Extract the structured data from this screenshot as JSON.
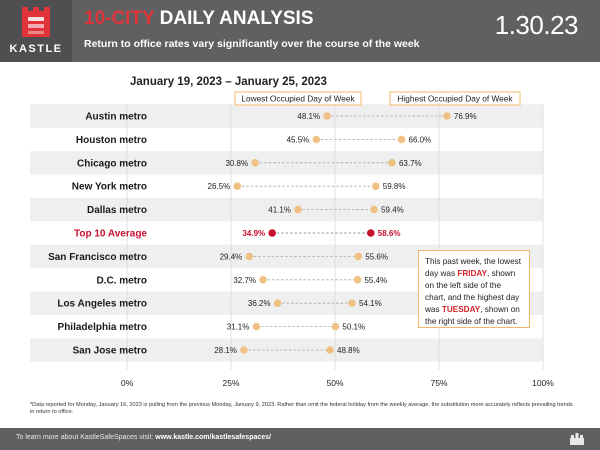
{
  "header": {
    "logo_text": "KASTLE",
    "title_highlight": "10-CITY",
    "title_rest": " DAILY ANALYSIS",
    "subtitle": "Return to office rates vary significantly over the course of the week",
    "date": "1.30.23"
  },
  "date_range": "January 19, 2023 – January 25, 2023",
  "legend": {
    "low_label": "Lowest Occupied Day of Week",
    "high_label": "Highest Occupied Day of Week"
  },
  "colors": {
    "dot": "#f0c184",
    "highlight": "#c8102e",
    "header_bg": "#5f6062",
    "band": "#efefef"
  },
  "chart_data": {
    "type": "dumbbell",
    "title": "10-CITY DAILY ANALYSIS",
    "xlim": [
      0,
      100
    ],
    "x_ticks": [
      "0%",
      "25%",
      "50%",
      "75%",
      "100%"
    ],
    "grid": true,
    "series": [
      {
        "name": "Lowest Occupied Day of Week",
        "role": "low"
      },
      {
        "name": "Highest Occupied Day of Week",
        "role": "high"
      }
    ],
    "rows": [
      {
        "label": "Austin metro",
        "low": 48.1,
        "high": 76.9,
        "low_label": "48.1%",
        "high_label": "76.9%",
        "highlight": false
      },
      {
        "label": "Houston metro",
        "low": 45.5,
        "high": 66.0,
        "low_label": "45.5%",
        "high_label": "66.0%",
        "highlight": false
      },
      {
        "label": "Chicago metro",
        "low": 30.8,
        "high": 63.7,
        "low_label": "30.8%",
        "high_label": "63.7%",
        "highlight": false
      },
      {
        "label": "New York metro",
        "low": 26.5,
        "high": 59.8,
        "low_label": "26.5%",
        "high_label": "59.8%",
        "highlight": false
      },
      {
        "label": "Dallas metro",
        "low": 41.1,
        "high": 59.4,
        "low_label": "41.1%",
        "high_label": "59.4%",
        "highlight": false
      },
      {
        "label": "Top 10 Average",
        "low": 34.9,
        "high": 58.6,
        "low_label": "34.9%",
        "high_label": "58.6%",
        "highlight": true
      },
      {
        "label": "San Francisco metro",
        "low": 29.4,
        "high": 55.6,
        "low_label": "29.4%",
        "high_label": "55.6%",
        "highlight": false
      },
      {
        "label": "D.C. metro",
        "low": 32.7,
        "high": 55.4,
        "low_label": "32.7%",
        "high_label": "55.4%",
        "highlight": false
      },
      {
        "label": "Los Angeles metro",
        "low": 36.2,
        "high": 54.1,
        "low_label": "36.2%",
        "high_label": "54.1%",
        "highlight": false
      },
      {
        "label": "Philadelphia metro",
        "low": 31.1,
        "high": 50.1,
        "low_label": "31.1%",
        "high_label": "50.1%",
        "highlight": false
      },
      {
        "label": "San Jose metro",
        "low": 28.1,
        "high": 48.8,
        "low_label": "28.1%",
        "high_label": "48.8%",
        "highlight": false
      }
    ]
  },
  "note": {
    "part1": "This past week, the lowest day was ",
    "day_low": "FRIDAY",
    "part2": ", shown on the left side of the chart, and the highest day was ",
    "day_high": "TUESDAY",
    "part3": ", shown on the right side of the chart."
  },
  "footnote": "*Data reported for Monday, January 16, 2023 is pulling from the previous Monday, January 9, 2023. Rather than omit the federal holiday from the weekly average, the substitution more accurately reflects prevailing trends in return to office.",
  "footer": {
    "prefix": "To learn more about KastleSafeSpaces visit: ",
    "url": "www.kastle.com/kastlesafespaces/"
  }
}
